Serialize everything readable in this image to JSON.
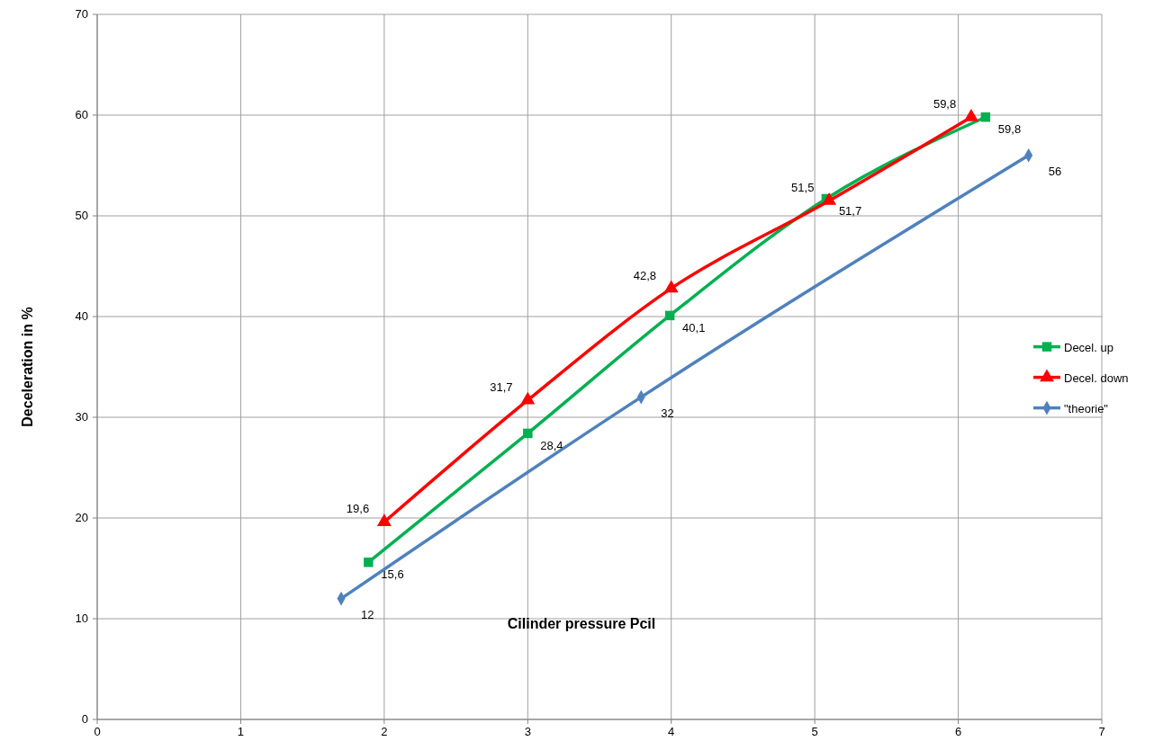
{
  "chart_data": {
    "type": "line",
    "xlabel": "Cilinder pressure Pcil",
    "ylabel": "Deceleration in %",
    "xlim": [
      0,
      7
    ],
    "xticks": [
      0,
      1,
      2,
      3,
      4,
      5,
      6,
      7
    ],
    "ylim": [
      0,
      70
    ],
    "yticks": [
      0,
      10,
      20,
      30,
      40,
      50,
      60,
      70
    ],
    "grid": true,
    "legend": "right",
    "line_style": "solid",
    "series": [
      {
        "name": "Decel. up",
        "color": "#00b050",
        "marker": "square",
        "x": [
          1.89,
          3.0,
          3.99,
          5.08,
          6.19
        ],
        "values": [
          15.6,
          28.4,
          40.1,
          51.7,
          59.8
        ],
        "value_labels": [
          "15,6",
          "28,4",
          "40,1",
          "51,7",
          "59,8"
        ]
      },
      {
        "name": "Decel. down",
        "color": "#ff0000",
        "marker": "triangle",
        "x": [
          2.0,
          3.0,
          4.0,
          5.1,
          6.09
        ],
        "values": [
          19.6,
          31.7,
          42.8,
          51.5,
          59.8
        ],
        "value_labels": [
          "19,6",
          "31,7",
          "42,8",
          "51,5",
          "59,8"
        ]
      },
      {
        "name": "\"theorie\"",
        "color": "#4f81bd",
        "marker": "diamond",
        "x": [
          1.7,
          3.79,
          6.49
        ],
        "values": [
          12,
          32,
          56
        ],
        "value_labels": [
          "12",
          "32",
          "56"
        ]
      }
    ]
  }
}
